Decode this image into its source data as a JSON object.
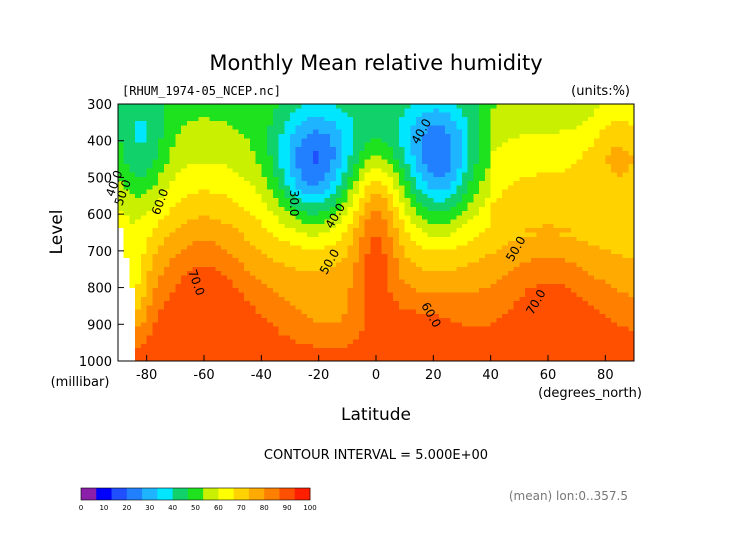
{
  "chart_data": {
    "type": "heatmap",
    "style": "filled-contour",
    "title": "Monthly Mean relative humidity",
    "file_label": "[RHUM_1974-05_NCEP.nc]",
    "units_label": "(units:%)",
    "xlabel": "Latitude",
    "x_unit_label": "(degrees_north)",
    "ylabel": "Level",
    "y_unit_label": "(millibar)",
    "xlim": [
      -90,
      90
    ],
    "ylim": [
      1000,
      300
    ],
    "x_ticks": [
      "-80",
      "-60",
      "-40",
      "-20",
      "0",
      "20",
      "40",
      "60",
      "80"
    ],
    "y_ticks": [
      "300",
      "400",
      "500",
      "600",
      "700",
      "800",
      "900",
      "1000"
    ],
    "contour_interval_label": "CONTOUR INTERVAL = 5.000E+00",
    "mean_label": "(mean) lon:0..357.5",
    "colorbar": {
      "ticks": [
        "0",
        "10",
        "20",
        "30",
        "40",
        "50",
        "60",
        "70",
        "80",
        "90",
        "100"
      ],
      "colors": [
        "#8B1FA9",
        "#0000FF",
        "#1F4FFF",
        "#2080FF",
        "#1EB4FF",
        "#00E6FF",
        "#10D16A",
        "#1FE21F",
        "#C8F000",
        "#FFFF00",
        "#FFD200",
        "#FFAA00",
        "#FF8000",
        "#FF5000",
        "#FF1E00"
      ]
    },
    "contour_labels": [
      {
        "text": "40.0",
        "lat": 17,
        "lev": 380
      },
      {
        "text": "30.0",
        "lat": -30,
        "lev": 570
      },
      {
        "text": "40.0",
        "lat": -13,
        "lev": 610
      },
      {
        "text": "40.0",
        "lat": -90,
        "lev": 520
      },
      {
        "text": "50.0",
        "lat": -87,
        "lev": 545
      },
      {
        "text": "60.0",
        "lat": -74,
        "lev": 570
      },
      {
        "text": "50.0",
        "lat": -15,
        "lev": 735
      },
      {
        "text": "50.0",
        "lat": 50,
        "lev": 700
      },
      {
        "text": "70.0",
        "lat": -64,
        "lev": 790
      },
      {
        "text": "60.0",
        "lat": 18,
        "lev": 880
      },
      {
        "text": "70.0",
        "lat": 57,
        "lev": 845
      }
    ]
  }
}
